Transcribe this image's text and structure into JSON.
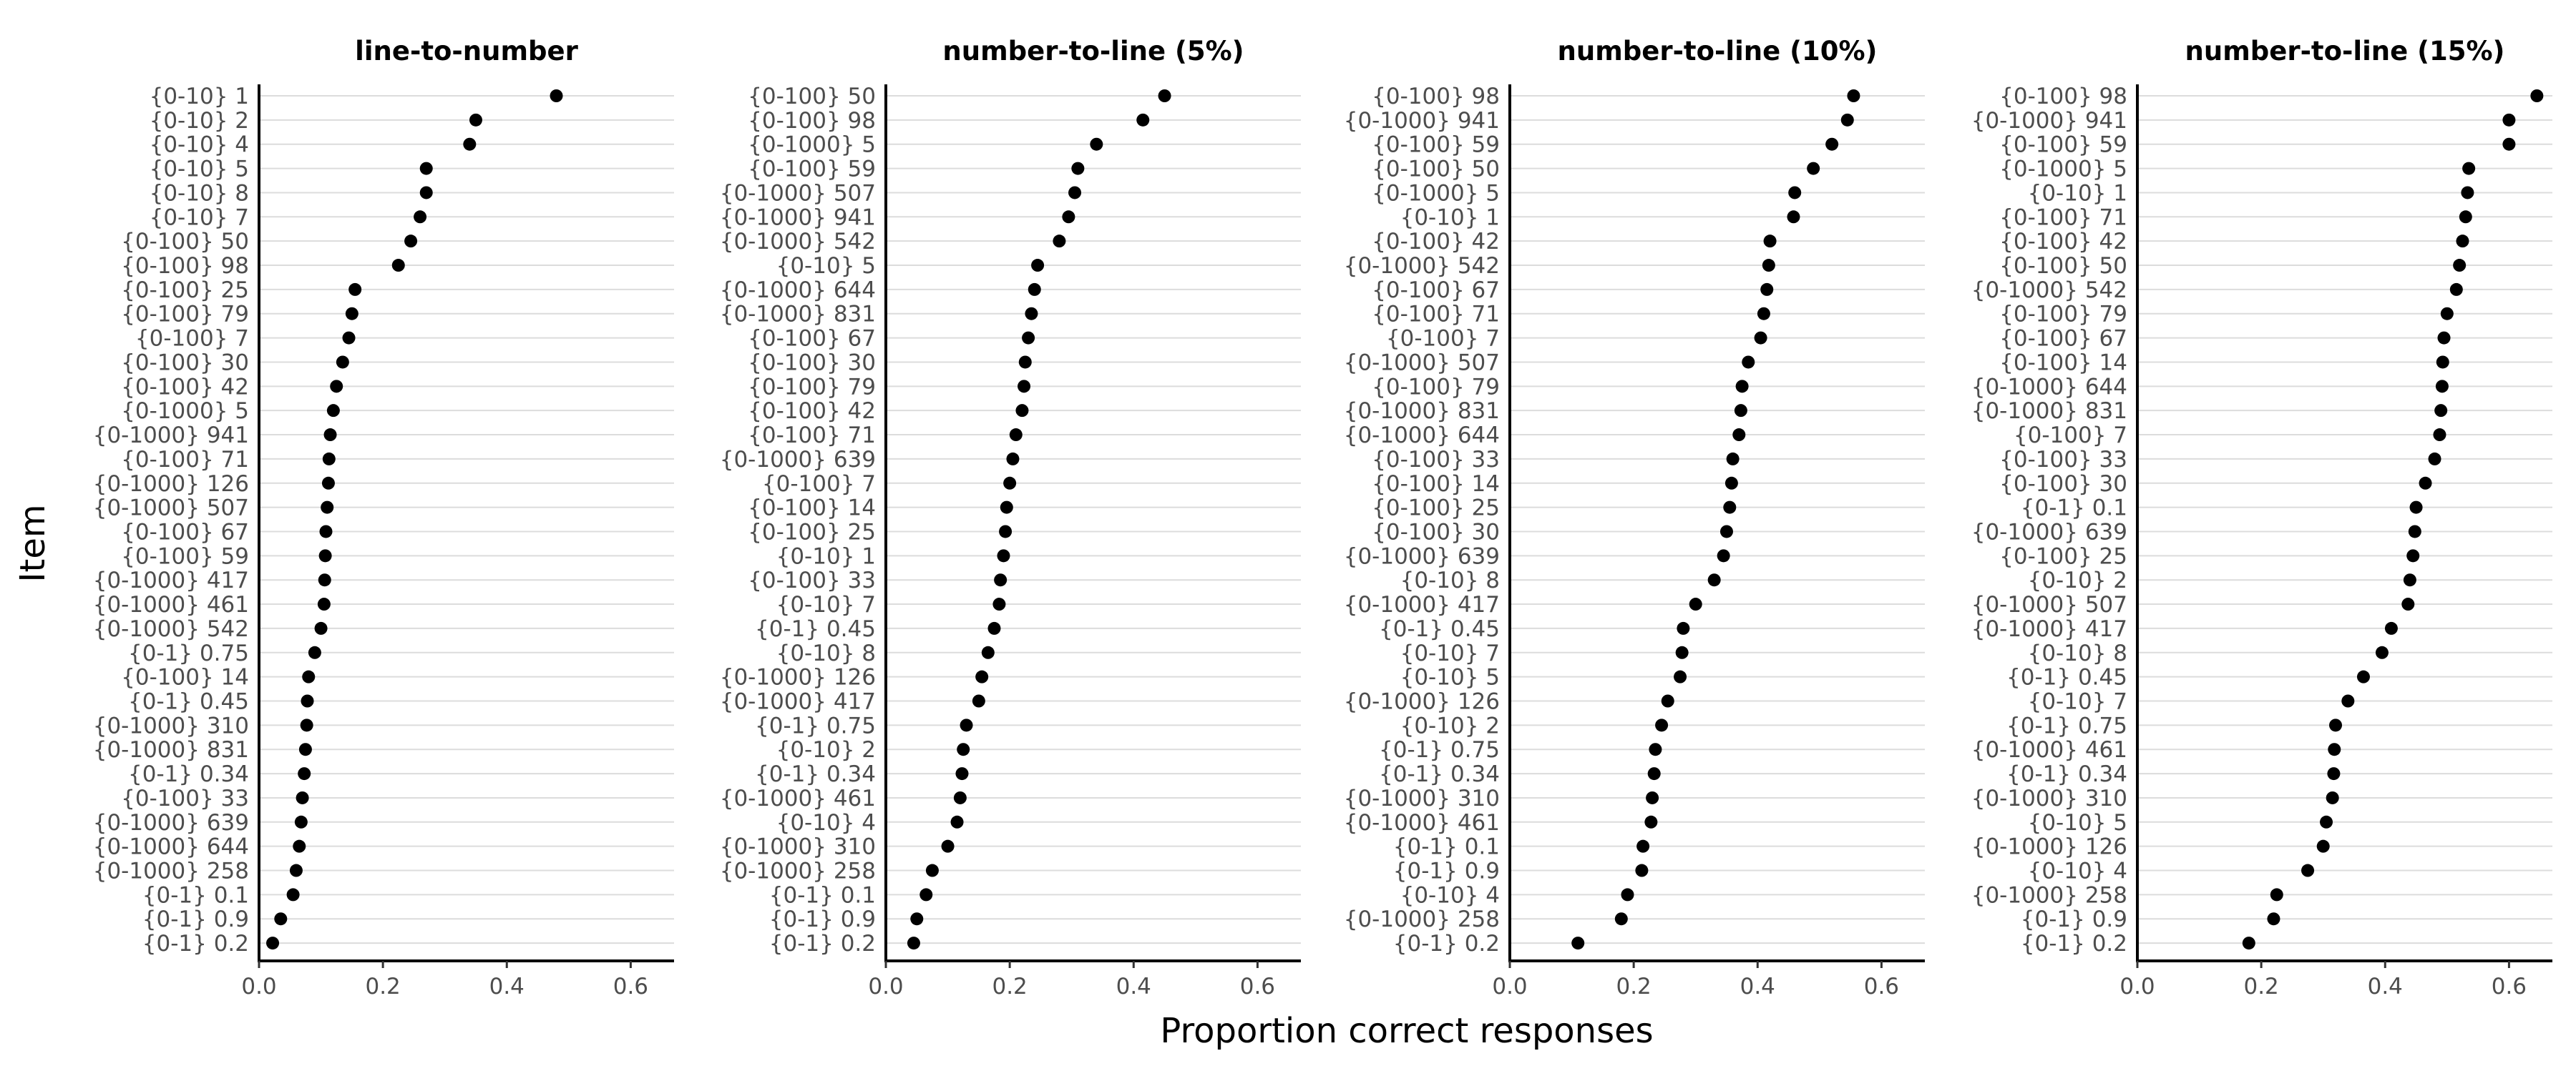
{
  "chart_data": {
    "type": "scatter",
    "xlabel": "Proportion correct responses",
    "ylabel": "Item",
    "xlim": [
      0,
      0.67
    ],
    "x_ticks": [
      "0.0",
      "0.2",
      "0.4",
      "0.6"
    ],
    "grid": "horizontal-major",
    "colors": {
      "point": "#000000",
      "grid": "#dcdcdc",
      "axis": "#000000"
    },
    "panels": [
      {
        "title": "line-to-number",
        "items": [
          {
            "label": "{0-10} 1",
            "value": 0.48
          },
          {
            "label": "{0-10} 2",
            "value": 0.35
          },
          {
            "label": "{0-10} 4",
            "value": 0.34
          },
          {
            "label": "{0-10} 5",
            "value": 0.27
          },
          {
            "label": "{0-10} 8",
            "value": 0.27
          },
          {
            "label": "{0-10} 7",
            "value": 0.26
          },
          {
            "label": "{0-100} 50",
            "value": 0.245
          },
          {
            "label": "{0-100} 98",
            "value": 0.225
          },
          {
            "label": "{0-100} 25",
            "value": 0.155
          },
          {
            "label": "{0-100} 79",
            "value": 0.15
          },
          {
            "label": "{0-100} 7",
            "value": 0.145
          },
          {
            "label": "{0-100} 30",
            "value": 0.135
          },
          {
            "label": "{0-100} 42",
            "value": 0.125
          },
          {
            "label": "{0-1000} 5",
            "value": 0.12
          },
          {
            "label": "{0-1000} 941",
            "value": 0.115
          },
          {
            "label": "{0-100} 71",
            "value": 0.113
          },
          {
            "label": "{0-1000} 126",
            "value": 0.112
          },
          {
            "label": "{0-1000} 507",
            "value": 0.11
          },
          {
            "label": "{0-100} 67",
            "value": 0.108
          },
          {
            "label": "{0-100} 59",
            "value": 0.107
          },
          {
            "label": "{0-1000} 417",
            "value": 0.106
          },
          {
            "label": "{0-1000} 461",
            "value": 0.105
          },
          {
            "label": "{0-1000} 542",
            "value": 0.1
          },
          {
            "label": "{0-1} 0.75",
            "value": 0.09
          },
          {
            "label": "{0-100} 14",
            "value": 0.08
          },
          {
            "label": "{0-1} 0.45",
            "value": 0.078
          },
          {
            "label": "{0-1000} 310",
            "value": 0.077
          },
          {
            "label": "{0-1000} 831",
            "value": 0.075
          },
          {
            "label": "{0-1} 0.34",
            "value": 0.073
          },
          {
            "label": "{0-100} 33",
            "value": 0.07
          },
          {
            "label": "{0-1000} 639",
            "value": 0.068
          },
          {
            "label": "{0-1000} 644",
            "value": 0.065
          },
          {
            "label": "{0-1000} 258",
            "value": 0.06
          },
          {
            "label": "{0-1} 0.1",
            "value": 0.055
          },
          {
            "label": "{0-1} 0.9",
            "value": 0.035
          },
          {
            "label": "{0-1} 0.2",
            "value": 0.022
          }
        ]
      },
      {
        "title": "number-to-line (5%)",
        "items": [
          {
            "label": "{0-100} 50",
            "value": 0.45
          },
          {
            "label": "{0-100} 98",
            "value": 0.415
          },
          {
            "label": "{0-1000} 5",
            "value": 0.34
          },
          {
            "label": "{0-100} 59",
            "value": 0.31
          },
          {
            "label": "{0-1000} 507",
            "value": 0.305
          },
          {
            "label": "{0-1000} 941",
            "value": 0.295
          },
          {
            "label": "{0-1000} 542",
            "value": 0.28
          },
          {
            "label": "{0-10} 5",
            "value": 0.245
          },
          {
            "label": "{0-1000} 644",
            "value": 0.24
          },
          {
            "label": "{0-1000} 831",
            "value": 0.235
          },
          {
            "label": "{0-100} 67",
            "value": 0.23
          },
          {
            "label": "{0-100} 30",
            "value": 0.225
          },
          {
            "label": "{0-100} 79",
            "value": 0.223
          },
          {
            "label": "{0-100} 42",
            "value": 0.22
          },
          {
            "label": "{0-100} 71",
            "value": 0.21
          },
          {
            "label": "{0-1000} 639",
            "value": 0.205
          },
          {
            "label": "{0-100} 7",
            "value": 0.2
          },
          {
            "label": "{0-100} 14",
            "value": 0.195
          },
          {
            "label": "{0-100} 25",
            "value": 0.193
          },
          {
            "label": "{0-10} 1",
            "value": 0.19
          },
          {
            "label": "{0-100} 33",
            "value": 0.185
          },
          {
            "label": "{0-10} 7",
            "value": 0.183
          },
          {
            "label": "{0-1} 0.45",
            "value": 0.175
          },
          {
            "label": "{0-10} 8",
            "value": 0.165
          },
          {
            "label": "{0-1000} 126",
            "value": 0.155
          },
          {
            "label": "{0-1000} 417",
            "value": 0.15
          },
          {
            "label": "{0-1} 0.75",
            "value": 0.13
          },
          {
            "label": "{0-10} 2",
            "value": 0.125
          },
          {
            "label": "{0-1} 0.34",
            "value": 0.123
          },
          {
            "label": "{0-1000} 461",
            "value": 0.12
          },
          {
            "label": "{0-10} 4",
            "value": 0.115
          },
          {
            "label": "{0-1000} 310",
            "value": 0.1
          },
          {
            "label": "{0-1000} 258",
            "value": 0.075
          },
          {
            "label": "{0-1} 0.1",
            "value": 0.065
          },
          {
            "label": "{0-1} 0.9",
            "value": 0.05
          },
          {
            "label": "{0-1} 0.2",
            "value": 0.045
          }
        ]
      },
      {
        "title": "number-to-line (10%)",
        "items": [
          {
            "label": "{0-100} 98",
            "value": 0.555
          },
          {
            "label": "{0-1000} 941",
            "value": 0.545
          },
          {
            "label": "{0-100} 59",
            "value": 0.52
          },
          {
            "label": "{0-100} 50",
            "value": 0.49
          },
          {
            "label": "{0-1000} 5",
            "value": 0.46
          },
          {
            "label": "{0-10} 1",
            "value": 0.458
          },
          {
            "label": "{0-100} 42",
            "value": 0.42
          },
          {
            "label": "{0-1000} 542",
            "value": 0.418
          },
          {
            "label": "{0-100} 67",
            "value": 0.415
          },
          {
            "label": "{0-100} 71",
            "value": 0.41
          },
          {
            "label": "{0-100} 7",
            "value": 0.405
          },
          {
            "label": "{0-1000} 507",
            "value": 0.385
          },
          {
            "label": "{0-100} 79",
            "value": 0.375
          },
          {
            "label": "{0-1000} 831",
            "value": 0.373
          },
          {
            "label": "{0-1000} 644",
            "value": 0.37
          },
          {
            "label": "{0-100} 33",
            "value": 0.36
          },
          {
            "label": "{0-100} 14",
            "value": 0.358
          },
          {
            "label": "{0-100} 25",
            "value": 0.355
          },
          {
            "label": "{0-100} 30",
            "value": 0.35
          },
          {
            "label": "{0-1000} 639",
            "value": 0.345
          },
          {
            "label": "{0-10} 8",
            "value": 0.33
          },
          {
            "label": "{0-1000} 417",
            "value": 0.3
          },
          {
            "label": "{0-1} 0.45",
            "value": 0.28
          },
          {
            "label": "{0-10} 7",
            "value": 0.278
          },
          {
            "label": "{0-10} 5",
            "value": 0.275
          },
          {
            "label": "{0-1000} 126",
            "value": 0.255
          },
          {
            "label": "{0-10} 2",
            "value": 0.245
          },
          {
            "label": "{0-1} 0.75",
            "value": 0.235
          },
          {
            "label": "{0-1} 0.34",
            "value": 0.233
          },
          {
            "label": "{0-1000} 310",
            "value": 0.23
          },
          {
            "label": "{0-1000} 461",
            "value": 0.228
          },
          {
            "label": "{0-1} 0.1",
            "value": 0.215
          },
          {
            "label": "{0-1} 0.9",
            "value": 0.213
          },
          {
            "label": "{0-10} 4",
            "value": 0.19
          },
          {
            "label": "{0-1000} 258",
            "value": 0.18
          },
          {
            "label": "{0-1} 0.2",
            "value": 0.11
          }
        ]
      },
      {
        "title": "number-to-line (15%)",
        "items": [
          {
            "label": "{0-100} 98",
            "value": 0.645
          },
          {
            "label": "{0-1000} 941",
            "value": 0.6
          },
          {
            "label": "{0-100} 59",
            "value": 0.6
          },
          {
            "label": "{0-1000} 5",
            "value": 0.535
          },
          {
            "label": "{0-10} 1",
            "value": 0.533
          },
          {
            "label": "{0-100} 71",
            "value": 0.53
          },
          {
            "label": "{0-100} 42",
            "value": 0.525
          },
          {
            "label": "{0-100} 50",
            "value": 0.52
          },
          {
            "label": "{0-1000} 542",
            "value": 0.515
          },
          {
            "label": "{0-100} 79",
            "value": 0.5
          },
          {
            "label": "{0-100} 67",
            "value": 0.495
          },
          {
            "label": "{0-100} 14",
            "value": 0.493
          },
          {
            "label": "{0-1000} 644",
            "value": 0.492
          },
          {
            "label": "{0-1000} 831",
            "value": 0.49
          },
          {
            "label": "{0-100} 7",
            "value": 0.488
          },
          {
            "label": "{0-100} 33",
            "value": 0.48
          },
          {
            "label": "{0-100} 30",
            "value": 0.465
          },
          {
            "label": "{0-1} 0.1",
            "value": 0.45
          },
          {
            "label": "{0-1000} 639",
            "value": 0.448
          },
          {
            "label": "{0-100} 25",
            "value": 0.445
          },
          {
            "label": "{0-10} 2",
            "value": 0.44
          },
          {
            "label": "{0-1000} 507",
            "value": 0.437
          },
          {
            "label": "{0-1000} 417",
            "value": 0.41
          },
          {
            "label": "{0-10} 8",
            "value": 0.395
          },
          {
            "label": "{0-1} 0.45",
            "value": 0.365
          },
          {
            "label": "{0-10} 7",
            "value": 0.34
          },
          {
            "label": "{0-1} 0.75",
            "value": 0.32
          },
          {
            "label": "{0-1000} 461",
            "value": 0.318
          },
          {
            "label": "{0-1} 0.34",
            "value": 0.317
          },
          {
            "label": "{0-1000} 310",
            "value": 0.315
          },
          {
            "label": "{0-10} 5",
            "value": 0.305
          },
          {
            "label": "{0-1000} 126",
            "value": 0.3
          },
          {
            "label": "{0-10} 4",
            "value": 0.275
          },
          {
            "label": "{0-1000} 258",
            "value": 0.225
          },
          {
            "label": "{0-1} 0.9",
            "value": 0.22
          },
          {
            "label": "{0-1} 0.2",
            "value": 0.18
          }
        ]
      }
    ]
  }
}
